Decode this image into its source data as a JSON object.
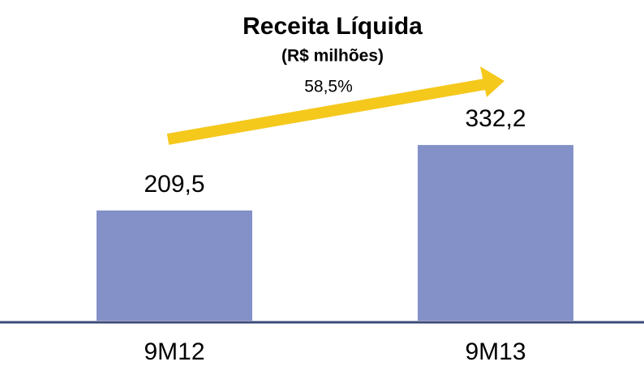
{
  "chart_data": {
    "type": "bar",
    "title": "Receita Líquida",
    "subtitle": "(R$ milhões)",
    "categories": [
      "9M12",
      "9M13"
    ],
    "values": [
      209.5,
      332.2
    ],
    "value_labels": [
      "209,5",
      "332,2"
    ],
    "color": "#8491c8",
    "annotation": "58,5%"
  }
}
